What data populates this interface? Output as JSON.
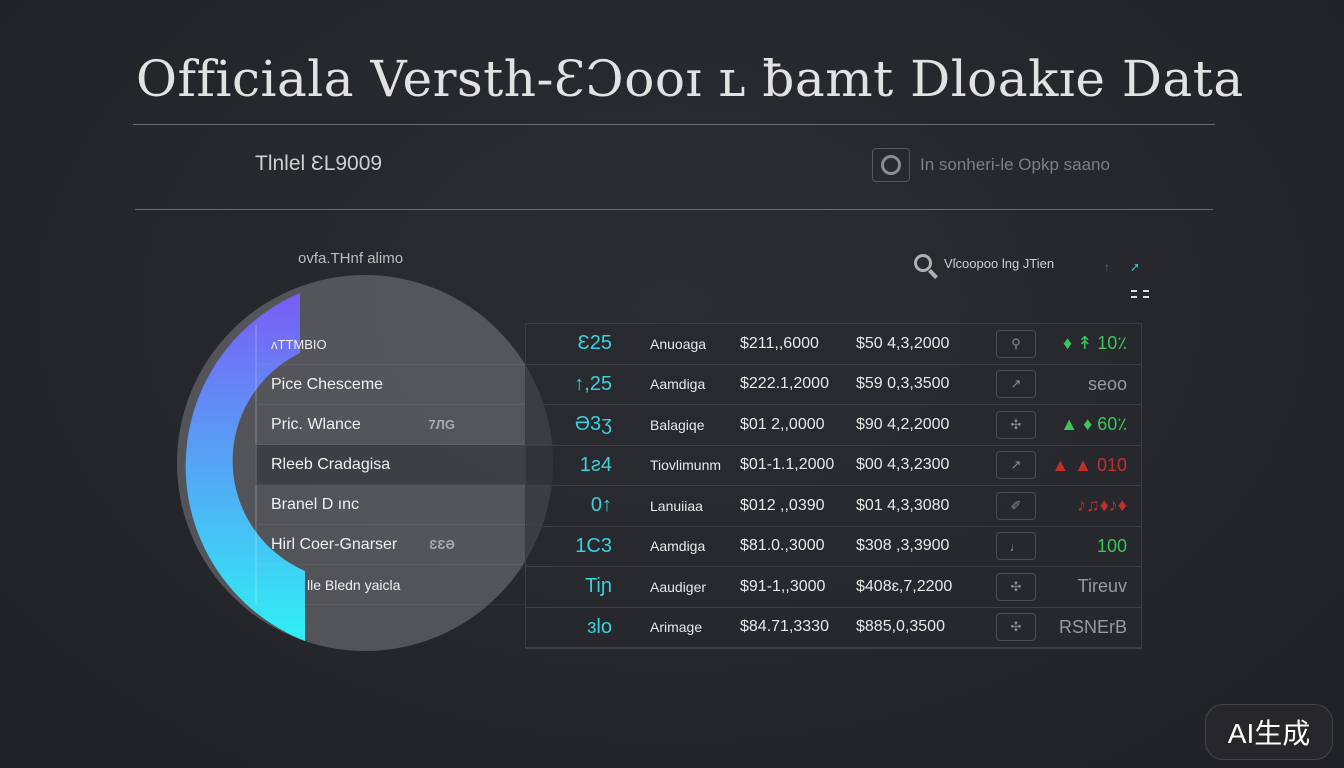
{
  "header": {
    "title": "Officiala Versth-ƐƆooɪ ʟ ƀamt Dloakɪe Data",
    "subtitle": "Tlnlel ƐL9009",
    "right_text": "In sonheri-le Opkp saano",
    "right_icon": "camera-icon"
  },
  "panel": {
    "label": "ovfa.THnf alimo",
    "accent_gradient": [
      "#7a5cf5",
      "#2ff0f5"
    ],
    "items": [
      {
        "label": "ʌTTMBIO",
        "value": ""
      },
      {
        "label": "Pice Chesceme",
        "value": ""
      },
      {
        "label": "Pric. Wlance",
        "value": "7ЛG"
      },
      {
        "label": "Rleeb Cradagisa",
        "value": ""
      },
      {
        "label": "Branel D ınc",
        "value": ""
      },
      {
        "label": "Hirl Coer-Gnarser",
        "value": "ƐƐƏ"
      },
      {
        "label": "lle Bledn yaicla",
        "value": ""
      }
    ]
  },
  "search": {
    "icon": "search-icon",
    "text": "Vſcoopoo lng JTien",
    "extra": "↑",
    "extra2": "➚"
  },
  "table": {
    "rows": [
      {
        "num": "Ɛ25",
        "name": "Anuoaga",
        "v1": "$211,,6000",
        "v2": "$50 4,3,2000",
        "icon": "⚲",
        "status": "♦ ↟ 10٪",
        "status_color": "#3ec45a"
      },
      {
        "num": "↑,25",
        "name": "Aamdiga",
        "v1": "$222.1,2000",
        "v2": "$59 0,3,3500",
        "icon": "↗",
        "status": "seoo",
        "status_color": "#9a9a9a"
      },
      {
        "num": "Ə3ʒ",
        "name": "Balagiqe",
        "v1": "$01 2,,0000",
        "v2": "$90 4,2,2000",
        "icon": "✣",
        "status": "▲ ♦ 60٪",
        "status_color": "#3ec45a"
      },
      {
        "num": "1ƨ4",
        "name": "Tiovlimunm",
        "v1": "$01-1.1,2000",
        "v2": "$00 4,3,2300",
        "icon": "↗",
        "status": "▲ ▲ 010",
        "status_color": "#c0302a"
      },
      {
        "num": "0↑",
        "name": "Lanuiiaa",
        "v1": "$012 ,,0390",
        "v2": "$01 4,3,3080",
        "icon": "✐",
        "status": "♪♫♦♪♦",
        "status_color": "#c0302a"
      },
      {
        "num": "1C3",
        "name": "Aamdiga",
        "v1": "$81.0.,3000",
        "v2": "$308 ,3,3900",
        "icon": "♩",
        "status": "100",
        "status_color": "#3ec45a"
      },
      {
        "num": "Tiɲ",
        "name": "Aaudiger",
        "v1": "$91-1,,3000",
        "v2": "$408ɛ,7,2200",
        "icon": "✣",
        "status": "Tireuv",
        "status_color": "#9a9a9a"
      },
      {
        "num": "ɜlo",
        "name": "Arimage",
        "v1": "$84.71,3330",
        "v2": "$885,0,3500",
        "icon": "✣",
        "status": "RSNErB",
        "status_color": "#9a9a9a"
      }
    ]
  },
  "watermark": "AI生成"
}
